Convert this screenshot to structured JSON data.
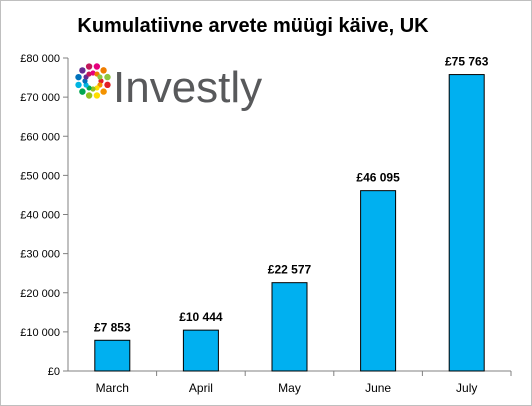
{
  "chart_data": {
    "type": "bar",
    "title": "Kumulatiivne arvete müügi käive, UK",
    "xlabel": "",
    "ylabel": "",
    "categories": [
      "March",
      "April",
      "May",
      "June",
      "July"
    ],
    "values": [
      7853,
      10444,
      22577,
      46095,
      75763
    ],
    "data_labels": [
      "£7 853",
      "£10 444",
      "£22 577",
      "£46 095",
      "£75 763"
    ],
    "ylim": [
      0,
      80000
    ],
    "y_ticks": [
      0,
      10000,
      20000,
      30000,
      40000,
      50000,
      60000,
      70000,
      80000
    ],
    "y_tick_labels": [
      "£0",
      "£10 000",
      "£20 000",
      "£30 000",
      "£40 000",
      "£50 000",
      "£60 000",
      "£70 000",
      "£80 000"
    ],
    "grid": false,
    "legend": "none",
    "colors": {
      "bar_fill": "#00b0f0",
      "bar_stroke": "#000000",
      "axis": "#808080"
    }
  },
  "logo": {
    "text": "Investly",
    "icon": "colorful-dot-flower-icon"
  }
}
